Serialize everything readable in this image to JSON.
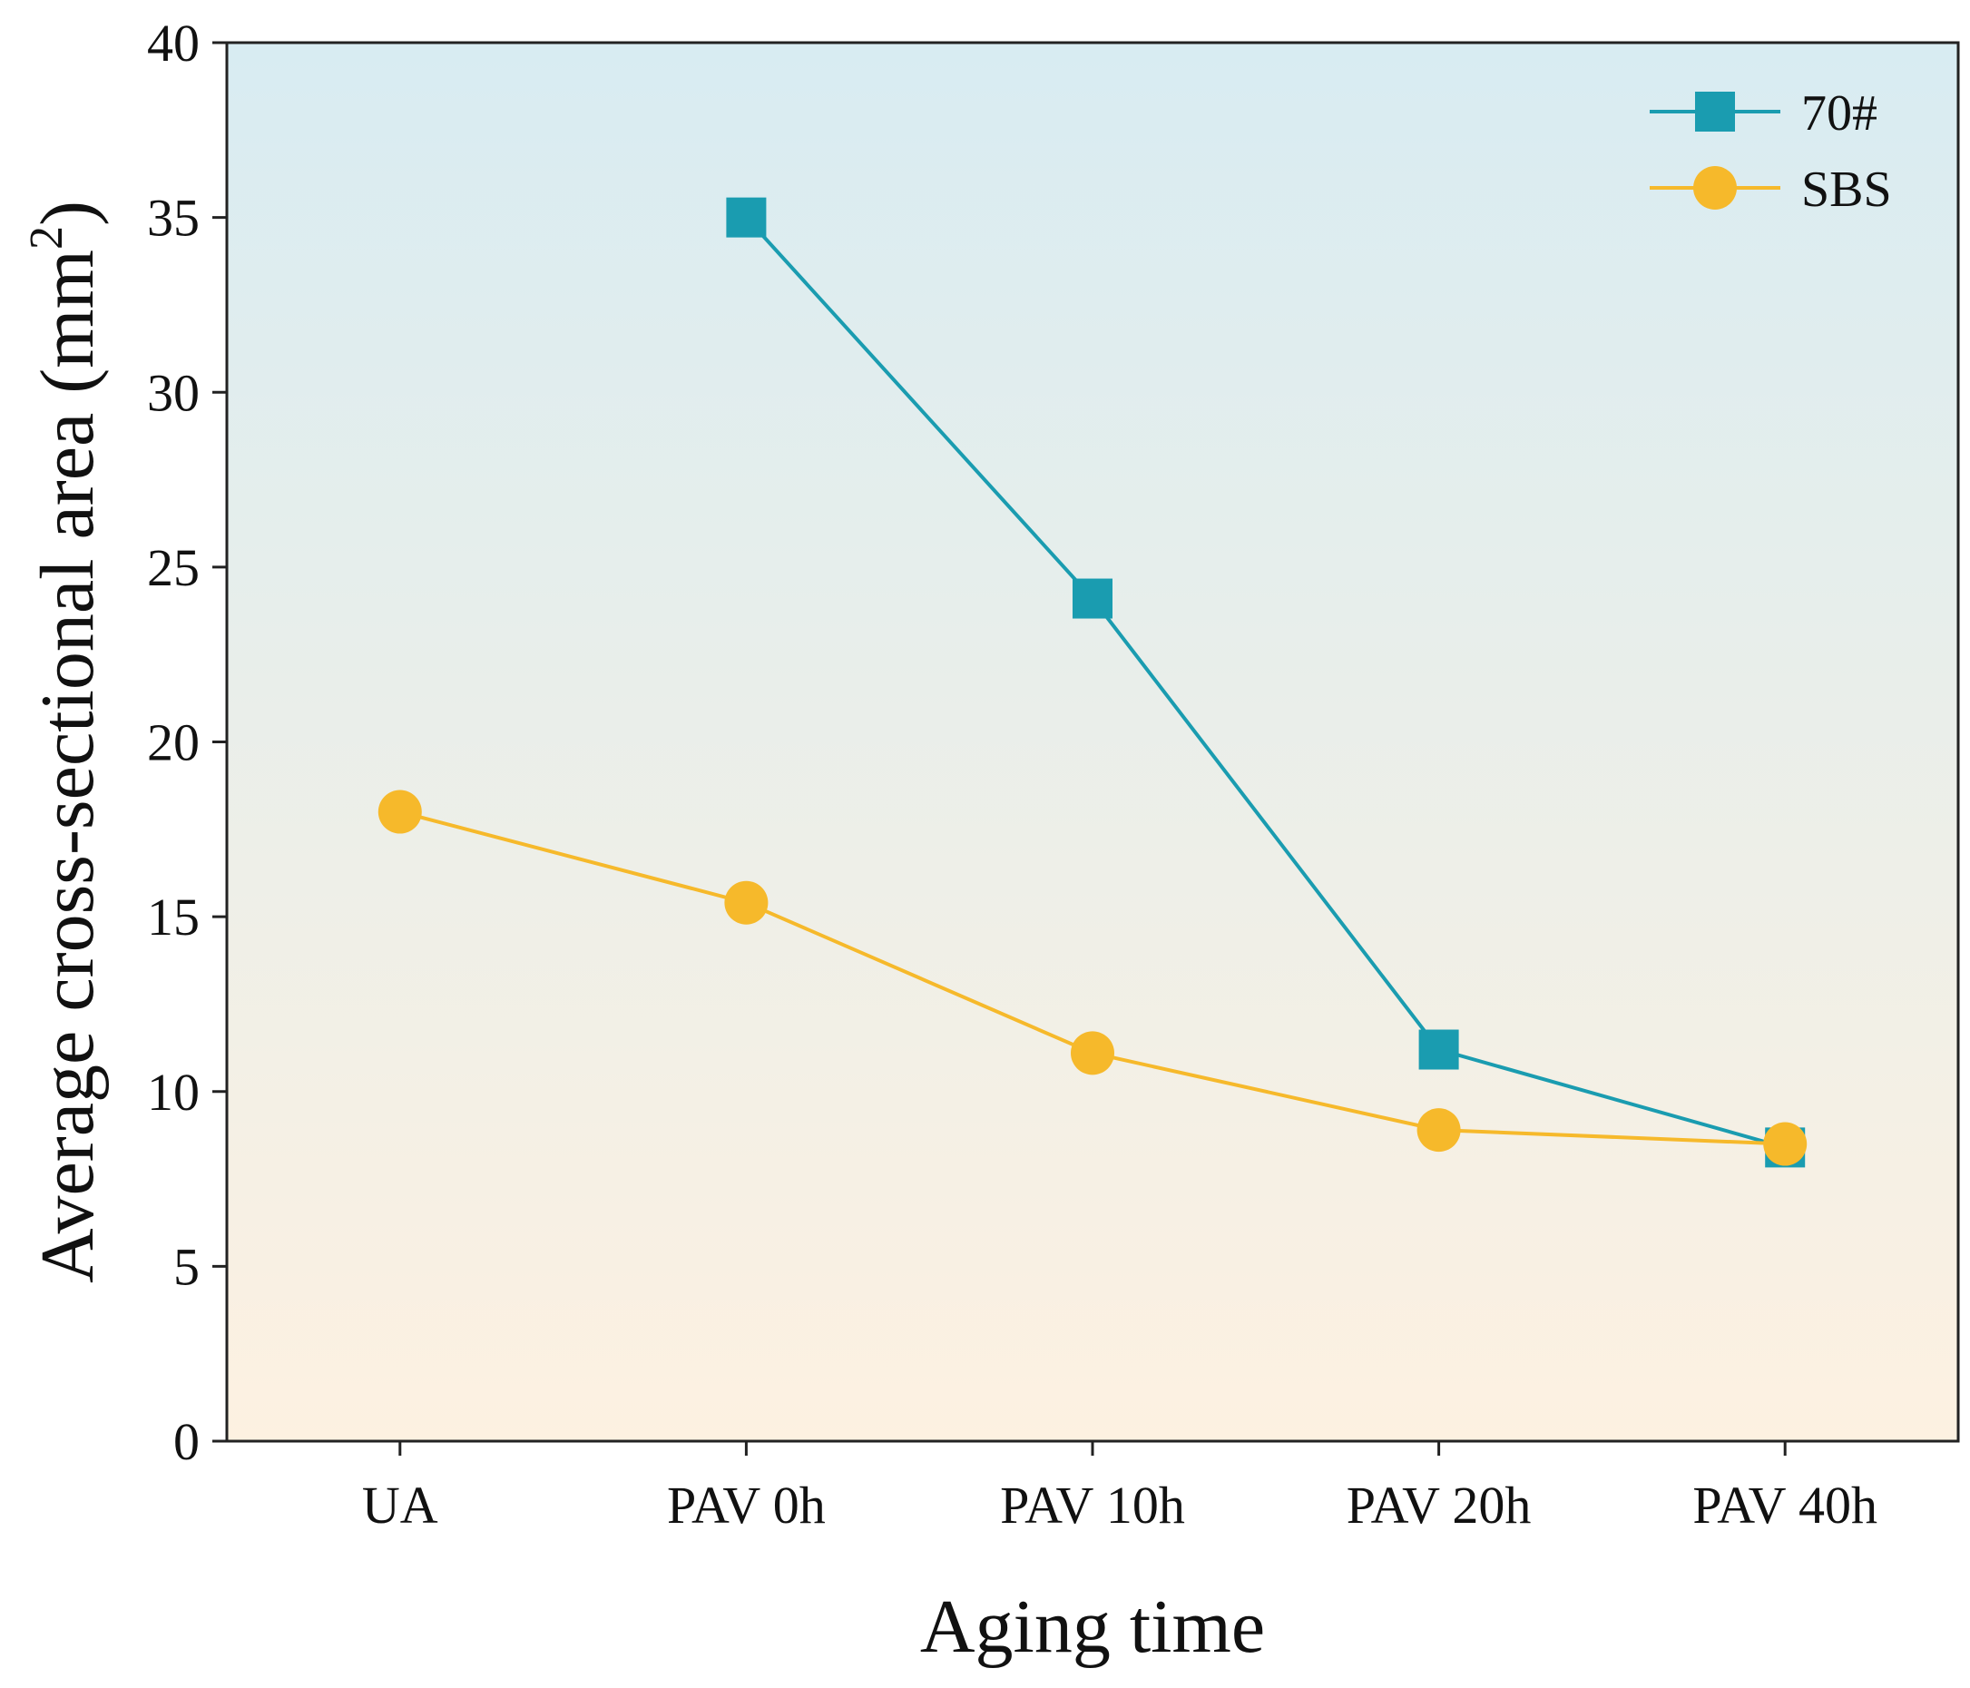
{
  "chart_data": {
    "type": "line",
    "title": "",
    "xlabel": "Aging time",
    "ylabel": "Average cross-sectional area (mm",
    "ylabel_superscript": "2",
    "ylabel_suffix": ")",
    "categories": [
      "UA",
      "PAV 0h",
      "PAV 10h",
      "PAV 20h",
      "PAV 40h"
    ],
    "ylim": [
      0,
      40
    ],
    "yticks": [
      0,
      5,
      10,
      15,
      20,
      25,
      30,
      35,
      40
    ],
    "legend_position": "top-right",
    "grid": false,
    "series": [
      {
        "name": "70#",
        "marker": "square",
        "color": "#1a9cb0",
        "values": [
          null,
          35.0,
          24.1,
          11.2,
          8.4
        ]
      },
      {
        "name": "SBS",
        "marker": "circle",
        "color": "#f6b92b",
        "values": [
          18.0,
          15.4,
          11.1,
          8.9,
          8.5
        ]
      }
    ],
    "background_gradient": [
      "#d8ecf2",
      "#fdf1e1"
    ]
  }
}
